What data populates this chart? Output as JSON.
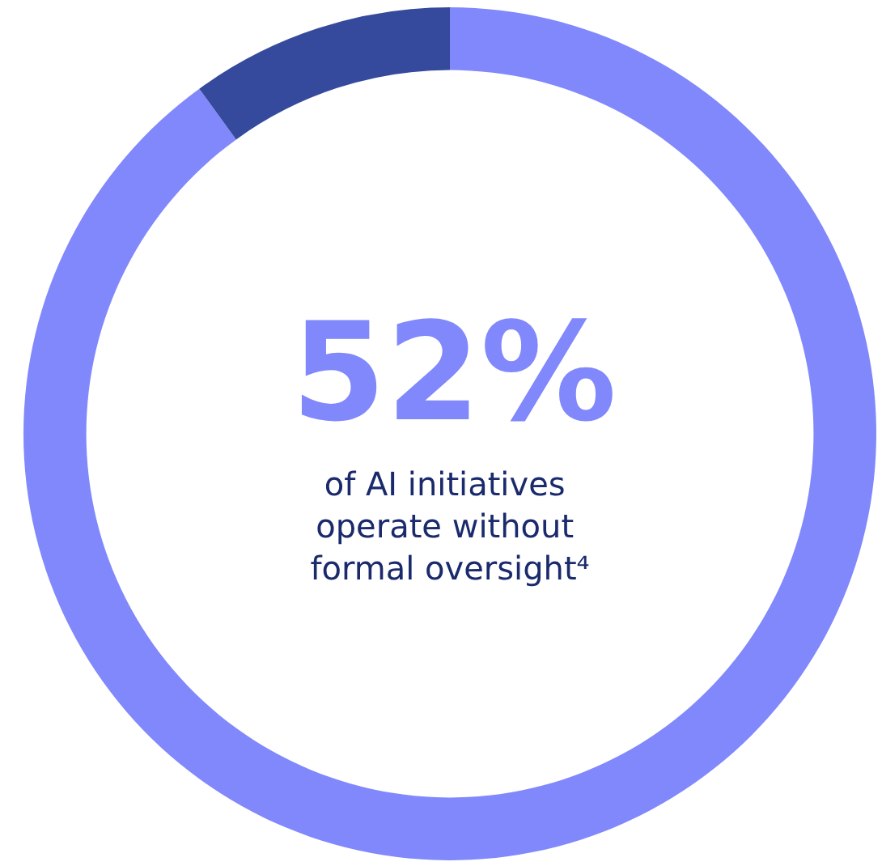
{
  "chart_data": {
    "type": "donut",
    "categories": [
      null,
      null
    ],
    "values": [
      90,
      10
    ],
    "colors": [
      "#8088fc",
      "#354a9c"
    ],
    "annotations": [
      "52%",
      "of AI initiatives operate without formal oversight⁴"
    ]
  }
}
